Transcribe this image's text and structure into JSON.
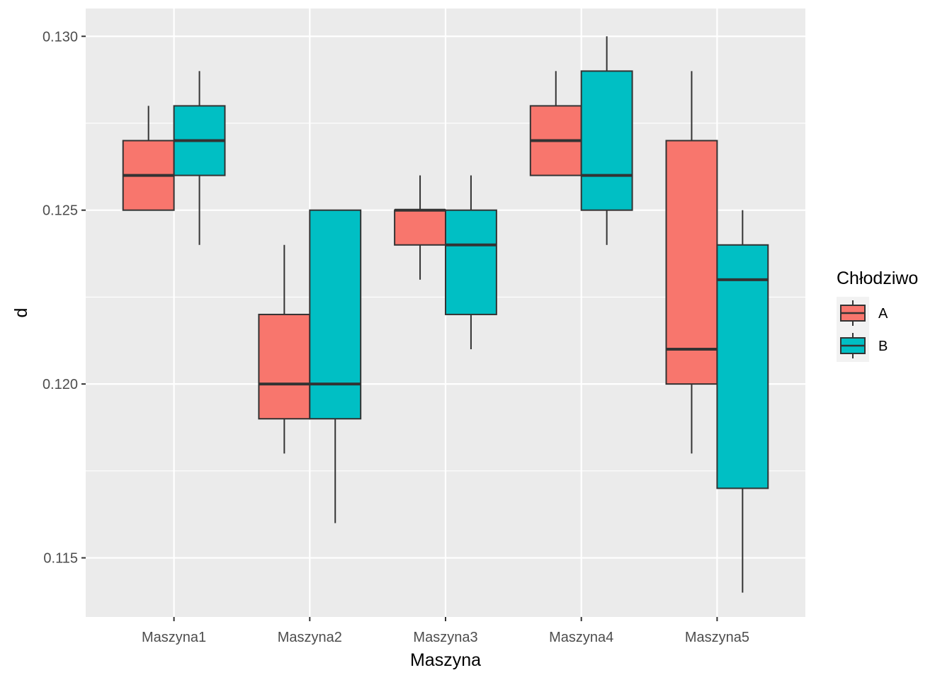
{
  "chart_data": {
    "type": "boxplot",
    "xlabel": "Maszyna",
    "ylabel": "d",
    "categories": [
      "Maszyna1",
      "Maszyna2",
      "Maszyna3",
      "Maszyna4",
      "Maszyna5"
    ],
    "ylim": [
      0.1133,
      0.1308
    ],
    "yticks": [
      "0.115",
      "0.120",
      "0.125",
      "0.130"
    ],
    "grid": true,
    "legend": {
      "title": "Chłodziwo",
      "position": "right",
      "entries": [
        {
          "label": "A",
          "color": "#F8766D"
        },
        {
          "label": "B",
          "color": "#00BFC4"
        }
      ]
    },
    "series": [
      {
        "name": "A",
        "color": "#F8766D",
        "boxes": [
          {
            "min": 0.125,
            "q1": 0.125,
            "median": 0.126,
            "q3": 0.127,
            "max": 0.128
          },
          {
            "min": 0.118,
            "q1": 0.119,
            "median": 0.12,
            "q3": 0.122,
            "max": 0.124
          },
          {
            "min": 0.123,
            "q1": 0.124,
            "median": 0.125,
            "q3": 0.125,
            "max": 0.126
          },
          {
            "min": 0.126,
            "q1": 0.126,
            "median": 0.127,
            "q3": 0.128,
            "max": 0.129
          },
          {
            "min": 0.118,
            "q1": 0.12,
            "median": 0.121,
            "q3": 0.127,
            "max": 0.129
          }
        ]
      },
      {
        "name": "B",
        "color": "#00BFC4",
        "boxes": [
          {
            "min": 0.124,
            "q1": 0.126,
            "median": 0.127,
            "q3": 0.128,
            "max": 0.129
          },
          {
            "min": 0.116,
            "q1": 0.119,
            "median": 0.12,
            "q3": 0.125,
            "max": 0.125
          },
          {
            "min": 0.121,
            "q1": 0.122,
            "median": 0.124,
            "q3": 0.125,
            "max": 0.126
          },
          {
            "min": 0.124,
            "q1": 0.125,
            "median": 0.126,
            "q3": 0.129,
            "max": 0.13
          },
          {
            "min": 0.114,
            "q1": 0.117,
            "median": 0.123,
            "q3": 0.124,
            "max": 0.125
          }
        ]
      }
    ]
  }
}
